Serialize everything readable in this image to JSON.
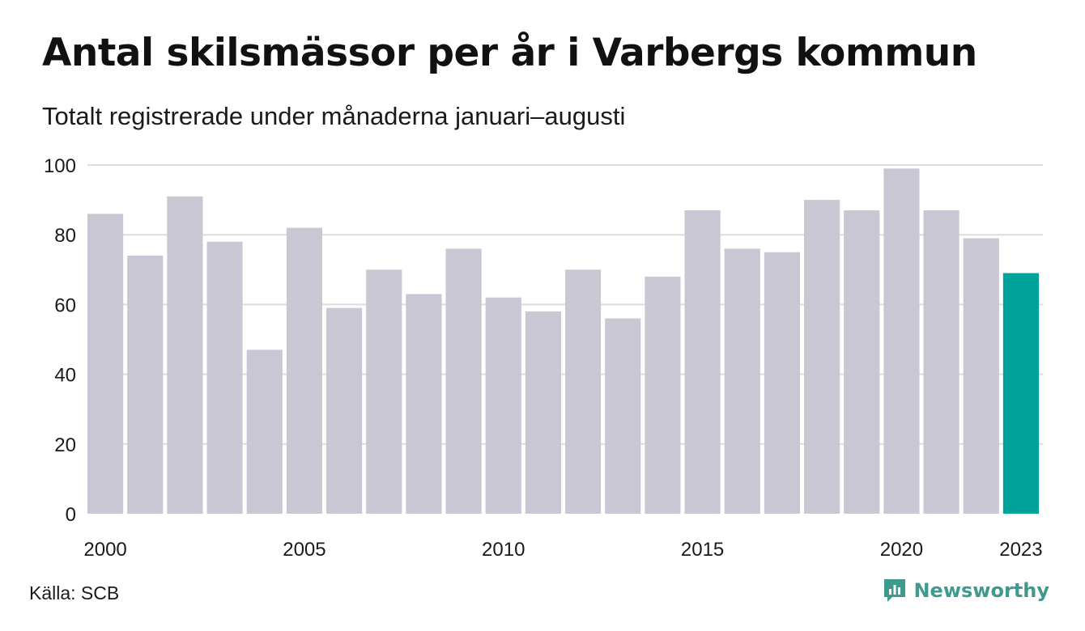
{
  "chart_data": {
    "type": "bar",
    "title": "Antal skilsmässor per år i Varbergs kommun",
    "subtitle": "Totalt registrerade under månaderna januari–augusti",
    "categories": [
      "2000",
      "2001",
      "2002",
      "2003",
      "2004",
      "2005",
      "2006",
      "2007",
      "2008",
      "2009",
      "2010",
      "2011",
      "2012",
      "2013",
      "2014",
      "2015",
      "2016",
      "2017",
      "2018",
      "2019",
      "2020",
      "2021",
      "2022",
      "2023"
    ],
    "values": [
      86,
      74,
      91,
      78,
      47,
      82,
      59,
      70,
      63,
      76,
      62,
      58,
      70,
      56,
      68,
      87,
      76,
      75,
      90,
      87,
      99,
      87,
      79,
      69
    ],
    "x_tick_labels": [
      "2000",
      "2005",
      "2010",
      "2015",
      "2020",
      "2023"
    ],
    "y_ticks": [
      0,
      20,
      40,
      60,
      80,
      100
    ],
    "ylim": [
      0,
      100
    ],
    "xlabel": "",
    "ylabel": "",
    "grid": true,
    "legend": "none",
    "highlight_category": "2023",
    "colors": {
      "bar": "#c9c7d3",
      "highlight": "#00a39a",
      "grid": "#dddddd"
    }
  },
  "footer": {
    "source": "Källa: SCB",
    "brand": "Newsworthy",
    "brand_icon": "newsworthy-logo-icon",
    "brand_color": "#3f9a8e"
  }
}
